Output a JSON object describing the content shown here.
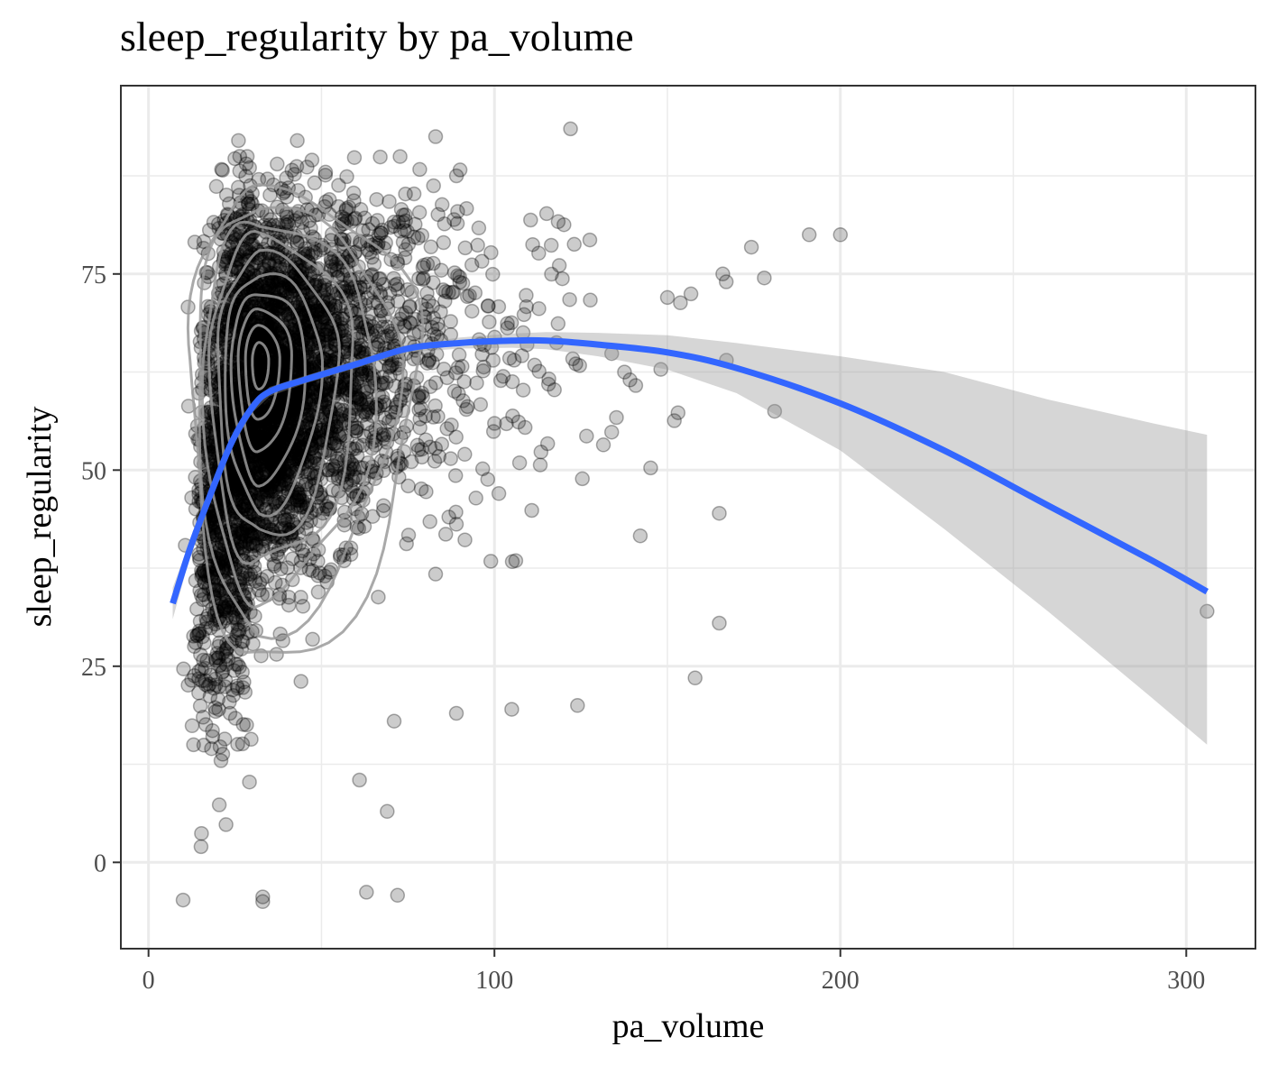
{
  "chart_data": {
    "type": "scatter",
    "title": "sleep_regularity by pa_volume",
    "xlabel": "pa_volume",
    "ylabel": "sleep_regularity",
    "xlim": [
      -8,
      320
    ],
    "ylim": [
      -11,
      99
    ],
    "x_ticks": [
      0,
      100,
      200,
      300
    ],
    "y_ticks": [
      0,
      25,
      50,
      75
    ],
    "x_tick_labels": [
      "0",
      "100",
      "200",
      "300"
    ],
    "y_tick_labels": [
      "0",
      "25",
      "50",
      "75"
    ],
    "grid": true,
    "legend": "none",
    "layers": [
      "points",
      "density_contours",
      "smooth_fit_with_confidence_band"
    ],
    "points_style": {
      "color": "#000000",
      "alpha": 0.2,
      "approx_n": 4000
    },
    "notable_points": [
      {
        "x": 306,
        "y": 32
      },
      {
        "x": 191,
        "y": 80
      },
      {
        "x": 200,
        "y": 80
      },
      {
        "x": 181,
        "y": 57.5
      },
      {
        "x": 178,
        "y": 74.5
      },
      {
        "x": 122,
        "y": 93.5
      },
      {
        "x": 83,
        "y": 92.5
      },
      {
        "x": 43,
        "y": 92
      },
      {
        "x": 26,
        "y": 92
      },
      {
        "x": 165,
        "y": 44.5
      },
      {
        "x": 165,
        "y": 30.5
      },
      {
        "x": 158,
        "y": 23.5
      },
      {
        "x": 124,
        "y": 20
      },
      {
        "x": 105,
        "y": 19.5
      },
      {
        "x": 89,
        "y": 19
      },
      {
        "x": 71,
        "y": 18
      },
      {
        "x": 72,
        "y": -4.2
      },
      {
        "x": 63,
        "y": -3.8
      },
      {
        "x": 33,
        "y": -4.4
      },
      {
        "x": 33,
        "y": -5
      },
      {
        "x": 10,
        "y": -4.8
      },
      {
        "x": 69,
        "y": 6.5
      },
      {
        "x": 61,
        "y": 10.5
      },
      {
        "x": 150,
        "y": 72
      },
      {
        "x": 166,
        "y": 75
      },
      {
        "x": 167,
        "y": 74
      }
    ],
    "smooth": {
      "color": "#3366FF",
      "x": [
        7,
        12,
        18,
        24,
        30,
        35,
        45,
        60,
        75,
        90,
        105,
        115,
        130,
        150,
        170,
        200,
        230,
        260,
        290,
        306
      ],
      "y": [
        33,
        40,
        47,
        53.5,
        58,
        60,
        61.5,
        63.5,
        65.5,
        66.2,
        66.5,
        66.5,
        66,
        65,
        63,
        58.5,
        52.5,
        45.5,
        38.5,
        34.5
      ],
      "ci_lower": [
        31,
        39,
        46.3,
        52.8,
        57.3,
        59.4,
        61,
        63,
        65,
        65.5,
        65.6,
        65.4,
        64.5,
        62.8,
        59.8,
        52.5,
        42.5,
        32,
        21,
        15
      ],
      "ci_upper": [
        35,
        41,
        47.7,
        54.2,
        58.7,
        60.6,
        62,
        64,
        66,
        66.9,
        67.4,
        67.6,
        67.5,
        67.2,
        66.2,
        64.5,
        62.5,
        59,
        56,
        54.5
      ]
    },
    "density_contours": {
      "color": "#9a9a9a",
      "center": {
        "x": 32,
        "y": 64
      },
      "levels": 10,
      "outer_extent": {
        "x": [
          12,
          78
        ],
        "y": [
          26,
          86
        ]
      }
    }
  }
}
